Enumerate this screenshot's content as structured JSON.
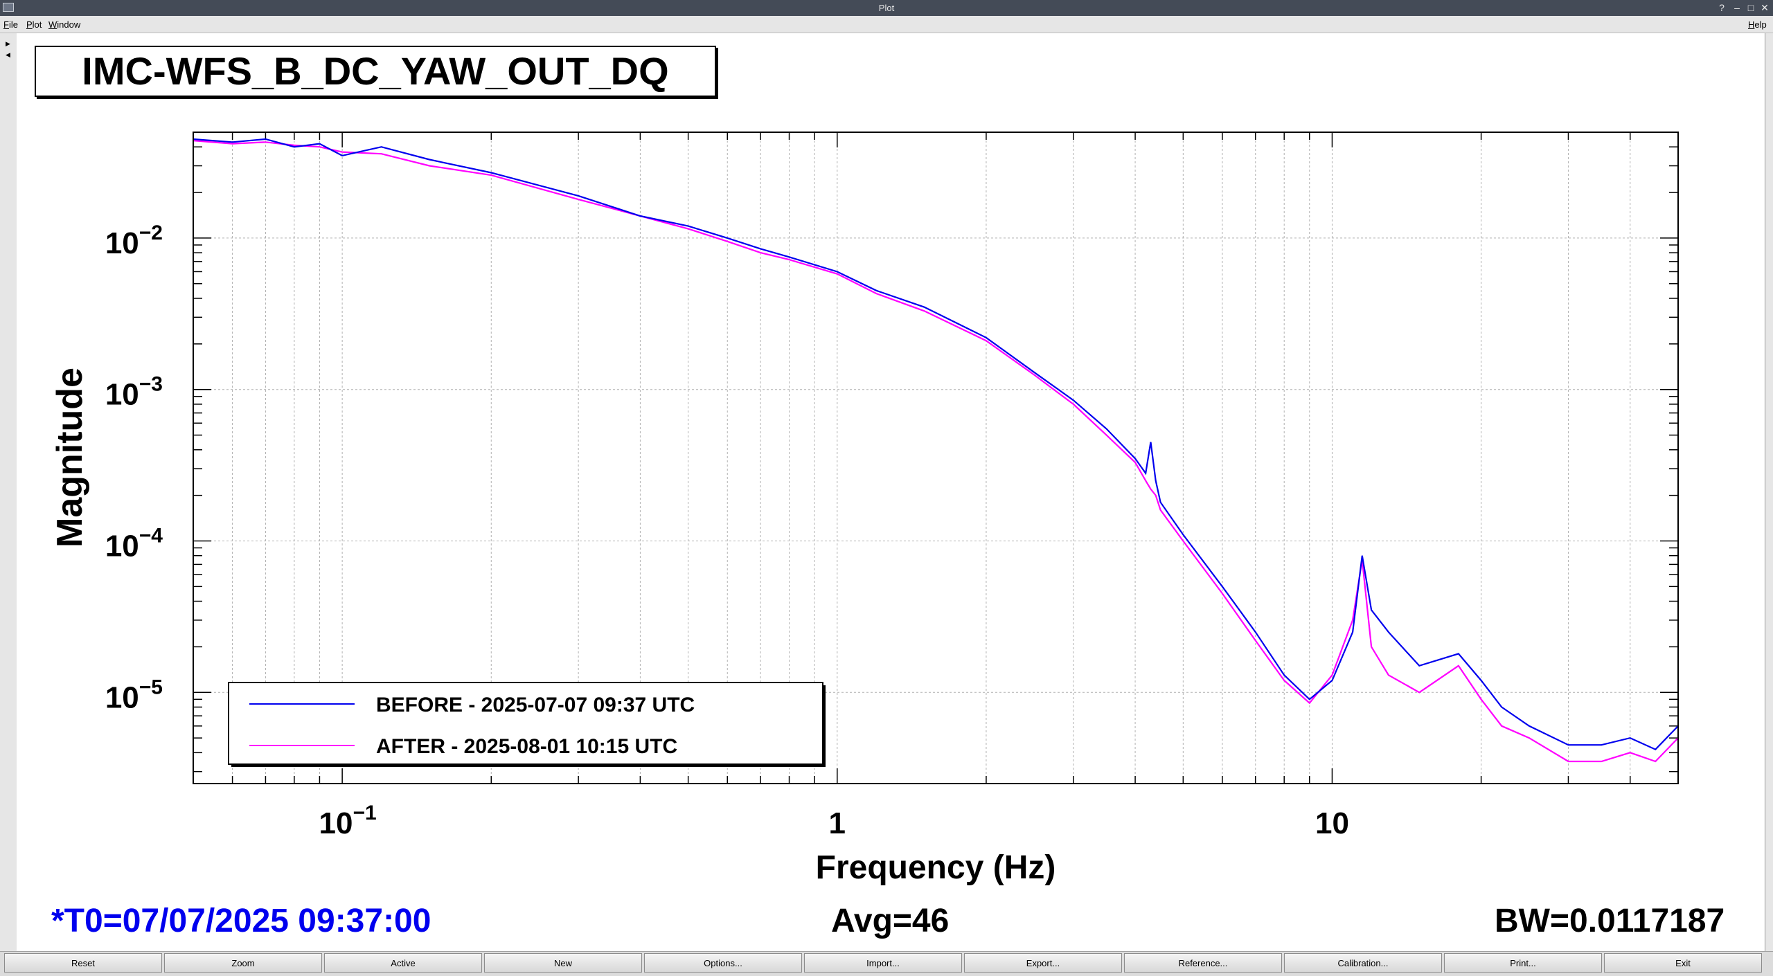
{
  "window": {
    "title": "Plot"
  },
  "menu": {
    "file": "File",
    "plot": "Plot",
    "window": "Window",
    "help": "Help"
  },
  "buttons": [
    "Reset",
    "Zoom",
    "Active",
    "New",
    "Options...",
    "Import...",
    "Export...",
    "Reference...",
    "Calibration...",
    "Print...",
    "Exit"
  ],
  "status": {
    "t0": "*T0=07/07/2025 09:37:00",
    "avg": "Avg=46",
    "bw": "BW=0.0117187"
  },
  "colors": {
    "before": "#0000ee",
    "after": "#ff00ff",
    "t0": "#0000ee"
  },
  "chart_data": {
    "type": "line",
    "title": "IMC-WFS_B_DC_YAW_OUT_DQ",
    "xlabel": "Frequency (Hz)",
    "ylabel": "Magnitude",
    "xscale": "log",
    "yscale": "log",
    "xlim": [
      0.05,
      50
    ],
    "ylim": [
      2.5e-06,
      0.05
    ],
    "x_ticks": [
      "10^-1",
      "1",
      "10"
    ],
    "y_ticks": [
      "10^-2",
      "10^-3",
      "10^-4",
      "10^-5"
    ],
    "grid": true,
    "legend_position": "bottom-left",
    "x": [
      0.05,
      0.06,
      0.07,
      0.08,
      0.09,
      0.1,
      0.12,
      0.15,
      0.2,
      0.3,
      0.4,
      0.5,
      0.6,
      0.7,
      0.8,
      1.0,
      1.2,
      1.5,
      2,
      2.5,
      3,
      3.5,
      4,
      4.2,
      4.3,
      4.4,
      4.5,
      5,
      6,
      7,
      8,
      9,
      10,
      11,
      11.5,
      12,
      13,
      15,
      18,
      20,
      22,
      25,
      30,
      35,
      40,
      45,
      50
    ],
    "series": [
      {
        "name": "BEFORE - 2025-07-07 09:37 UTC",
        "values": [
          0.045,
          0.043,
          0.045,
          0.04,
          0.042,
          0.035,
          0.04,
          0.033,
          0.027,
          0.019,
          0.014,
          0.012,
          0.01,
          0.0085,
          0.0075,
          0.006,
          0.0045,
          0.0035,
          0.0022,
          0.0013,
          0.00085,
          0.00055,
          0.00035,
          0.00028,
          0.00045,
          0.00025,
          0.00018,
          0.00011,
          5e-05,
          2.5e-05,
          1.3e-05,
          9e-06,
          1.2e-05,
          2.5e-05,
          8e-05,
          3.5e-05,
          2.5e-05,
          1.5e-05,
          1.8e-05,
          1.2e-05,
          8e-06,
          6e-06,
          4.5e-06,
          4.5e-06,
          5e-06,
          4.2e-06,
          6e-06
        ]
      },
      {
        "name": "AFTER - 2025-08-01 10:15 UTC",
        "values": [
          0.044,
          0.042,
          0.043,
          0.041,
          0.04,
          0.037,
          0.036,
          0.03,
          0.026,
          0.018,
          0.014,
          0.0115,
          0.0095,
          0.008,
          0.0072,
          0.0058,
          0.0043,
          0.0033,
          0.0021,
          0.00125,
          0.0008,
          0.0005,
          0.00033,
          0.00025,
          0.00022,
          0.0002,
          0.00016,
          0.0001,
          4.5e-05,
          2.2e-05,
          1.2e-05,
          8.5e-06,
          1.3e-05,
          3e-05,
          7.5e-05,
          2e-05,
          1.3e-05,
          1e-05,
          1.5e-05,
          9e-06,
          6e-06,
          5e-06,
          3.5e-06,
          3.5e-06,
          4e-06,
          3.5e-06,
          5e-06
        ]
      }
    ]
  }
}
